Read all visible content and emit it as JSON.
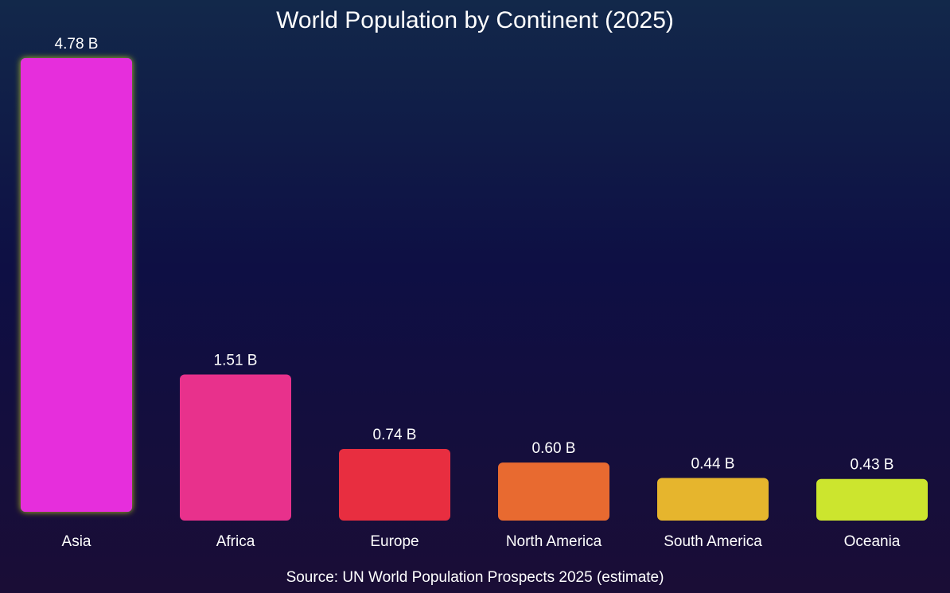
{
  "chart_data": {
    "type": "bar",
    "title": "World Population by Continent (2025)",
    "source": "Source: UN World Population Prospects 2025 (estimate)",
    "categories": [
      "Asia",
      "Africa",
      "Europe",
      "North America",
      "South America",
      "Oceania"
    ],
    "values": [
      4.78,
      1.51,
      0.74,
      0.6,
      0.44,
      0.43
    ],
    "value_labels": [
      "4.78 B",
      "1.51 B",
      "0.74 B",
      "0.60 B",
      "0.44 B",
      "0.43 B"
    ],
    "unit": "B",
    "ylim": [
      0,
      4.78
    ],
    "grid": false,
    "legend": "none",
    "colors": [
      "#e62fdc",
      "#e8318c",
      "#e82e40",
      "#e86a30",
      "#e6b52d",
      "#cce52e"
    ],
    "highlight": {
      "category": "Asia",
      "glow_color": "#c9d21e"
    }
  }
}
